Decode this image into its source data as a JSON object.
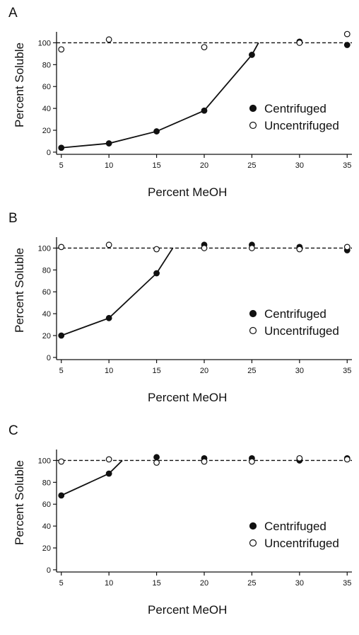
{
  "chart_data": [
    {
      "type": "line",
      "panel_label": "A",
      "xlabel": "Percent MeOH",
      "ylabel": "Percent Soluble",
      "xlim": [
        4.5,
        35.5
      ],
      "ylim": [
        -2,
        110
      ],
      "x_ticks": [
        5,
        10,
        15,
        20,
        25,
        30,
        35
      ],
      "y_ticks": [
        0,
        20,
        40,
        60,
        80,
        100
      ],
      "reference_line": 100,
      "legend_position": "right",
      "series": [
        {
          "name": "Centrifuged",
          "marker": "filled-circle",
          "points": [
            [
              5,
              4
            ],
            [
              10,
              8
            ],
            [
              15,
              19
            ],
            [
              20,
              38
            ],
            [
              25,
              89
            ],
            [
              30,
              101
            ],
            [
              35,
              98
            ]
          ],
          "fit_line": [
            [
              5,
              4
            ],
            [
              10,
              8
            ],
            [
              15,
              19
            ],
            [
              20,
              38
            ],
            [
              25,
              89
            ],
            [
              25.7,
              100
            ]
          ]
        },
        {
          "name": "Uncentrifuged",
          "marker": "open-circle",
          "points": [
            [
              5,
              94
            ],
            [
              10,
              103
            ],
            [
              20,
              96
            ],
            [
              30,
              100
            ],
            [
              35,
              108
            ]
          ]
        }
      ]
    },
    {
      "type": "line",
      "panel_label": "B",
      "xlabel": "Percent MeOH",
      "ylabel": "Percent Soluble",
      "xlim": [
        4.5,
        35.5
      ],
      "ylim": [
        -2,
        110
      ],
      "x_ticks": [
        5,
        10,
        15,
        20,
        25,
        30,
        35
      ],
      "y_ticks": [
        0,
        20,
        40,
        60,
        80,
        100
      ],
      "reference_line": 100,
      "legend_position": "right",
      "series": [
        {
          "name": "Centrifuged",
          "marker": "filled-circle",
          "points": [
            [
              5,
              20
            ],
            [
              10,
              36
            ],
            [
              15,
              77
            ],
            [
              20,
              103
            ],
            [
              25,
              103
            ],
            [
              30,
              101
            ],
            [
              35,
              98
            ]
          ],
          "fit_line": [
            [
              5,
              20
            ],
            [
              10,
              36
            ],
            [
              15,
              77
            ],
            [
              16.7,
              100
            ]
          ]
        },
        {
          "name": "Uncentrifuged",
          "marker": "open-circle",
          "points": [
            [
              5,
              101
            ],
            [
              10,
              103
            ],
            [
              15,
              99
            ],
            [
              20,
              100
            ],
            [
              25,
              100
            ],
            [
              30,
              99
            ],
            [
              35,
              101
            ]
          ]
        }
      ]
    },
    {
      "type": "line",
      "panel_label": "C",
      "xlabel": "Percent MeOH",
      "ylabel": "Percent Soluble",
      "xlim": [
        4.5,
        35.5
      ],
      "ylim": [
        -2,
        110
      ],
      "x_ticks": [
        5,
        10,
        15,
        20,
        25,
        30,
        35
      ],
      "y_ticks": [
        0,
        20,
        40,
        60,
        80,
        100
      ],
      "reference_line": 100,
      "legend_position": "right",
      "series": [
        {
          "name": "Centrifuged",
          "marker": "filled-circle",
          "points": [
            [
              5,
              68
            ],
            [
              10,
              88
            ],
            [
              15,
              103
            ],
            [
              20,
              102
            ],
            [
              25,
              102
            ],
            [
              30,
              100
            ],
            [
              35,
              102
            ]
          ],
          "fit_line": [
            [
              5,
              68
            ],
            [
              10,
              88
            ],
            [
              11.4,
              100
            ]
          ]
        },
        {
          "name": "Uncentrifuged",
          "marker": "open-circle",
          "points": [
            [
              5,
              99
            ],
            [
              10,
              101
            ],
            [
              15,
              98
            ],
            [
              20,
              99
            ],
            [
              25,
              99
            ],
            [
              30,
              102
            ],
            [
              35,
              101
            ]
          ]
        }
      ]
    }
  ]
}
